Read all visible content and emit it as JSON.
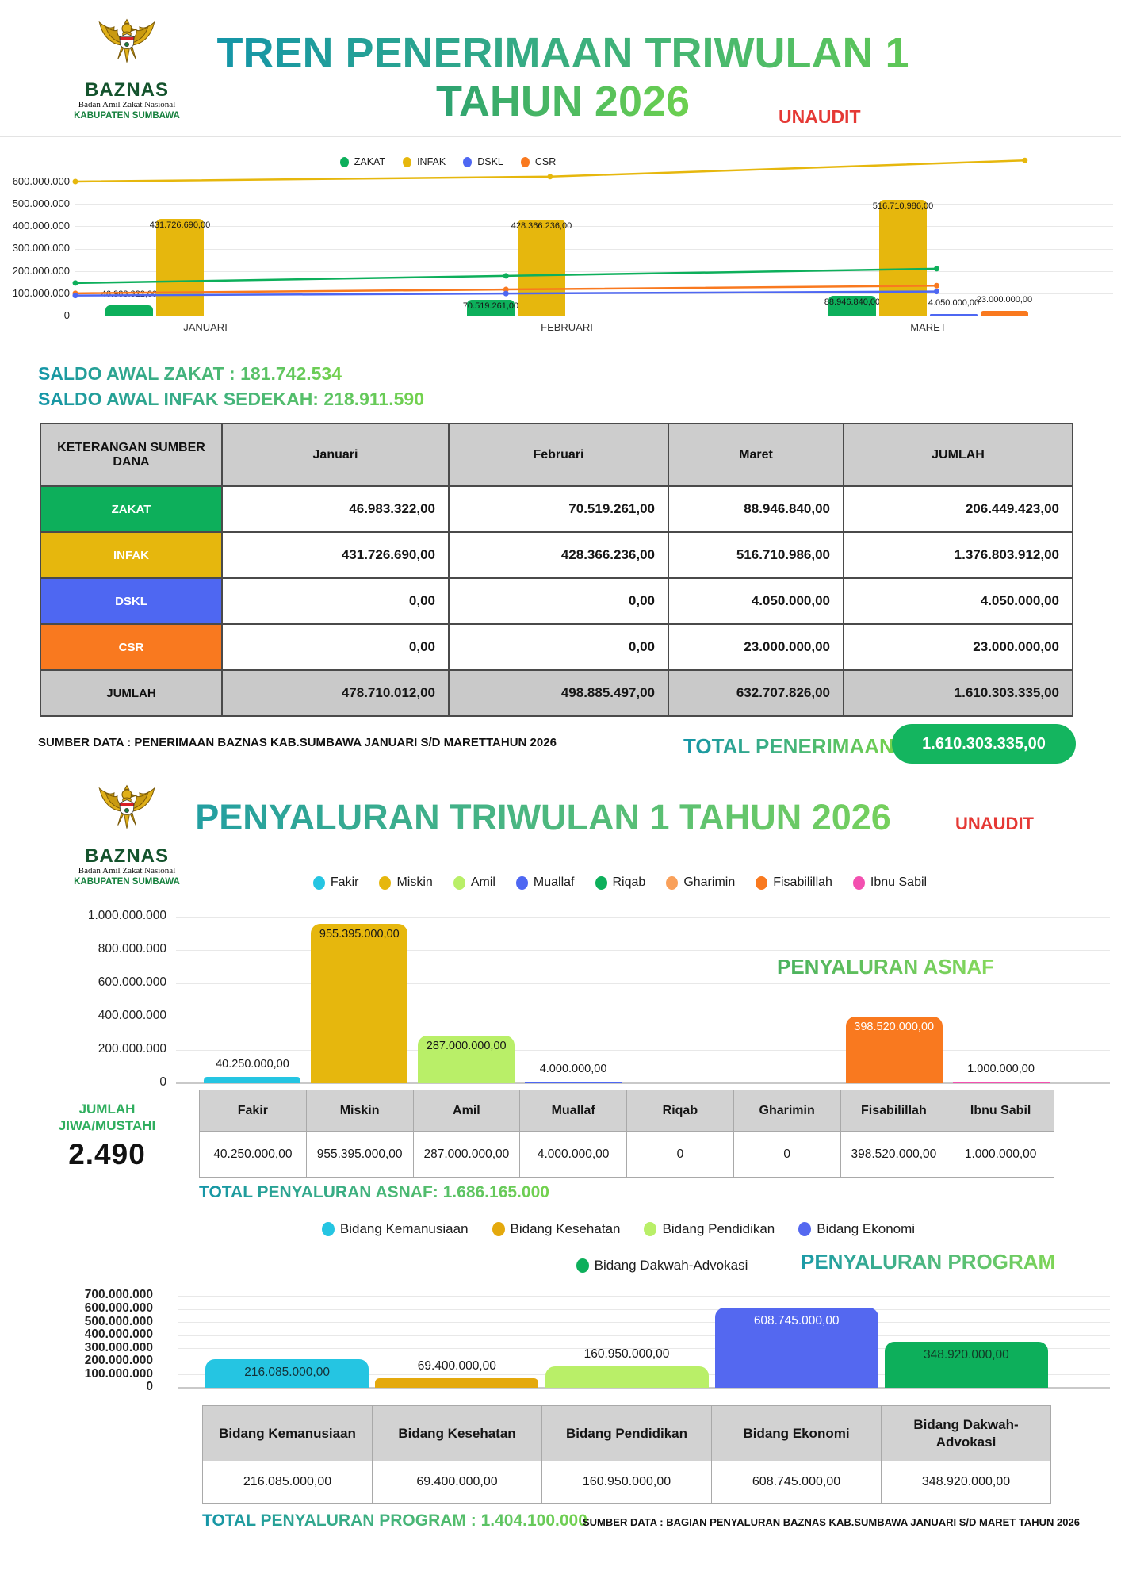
{
  "brand": {
    "name": "BAZNAS",
    "org": "Badan Amil Zakat Nasional",
    "region": "KABUPATEN SUMBAWA"
  },
  "colors": {
    "green": "#0daf5b",
    "gold": "#e6b70d",
    "blue": "#4e67f2",
    "orange": "#f9791f",
    "cyan": "#25c5e2",
    "lime": "#b9ef68",
    "light_orange": "#f9a05a",
    "pink": "#f350b0",
    "red": "#e53935",
    "teal": "#1495a8",
    "light_green": "#74d24d",
    "pill_green": "#14b55f"
  },
  "section_penerimaan": {
    "title_line1": "TREN PENERIMAAN TRIWULAN 1",
    "title_line2": "TAHUN 2026",
    "unaudit": "UNAUDIT",
    "saldo_zakat": "SALDO AWAL ZAKAT : 181.742.534",
    "saldo_infak": "SALDO AWAL INFAK SEDEKAH: 218.911.590",
    "sumber": "SUMBER DATA : PENERIMAAN BAZNAS KAB.SUMBAWA JANUARI S/D MARETTAHUN 2026",
    "total_label": "TOTAL PENERIMAAN",
    "total_value": "1.610.303.335,00",
    "table": {
      "headers": [
        "KETERANGAN SUMBER DANA",
        "Januari",
        "Februari",
        "Maret",
        "JUMLAH"
      ],
      "rows": [
        {
          "label": "ZAKAT",
          "color": "#0daf5b",
          "text": "#ffffff",
          "values": [
            "46.983.322,00",
            "70.519.261,00",
            "88.946.840,00",
            "206.449.423,00"
          ]
        },
        {
          "label": "INFAK",
          "color": "#e6b70d",
          "text": "#ffffff",
          "values": [
            "431.726.690,00",
            "428.366.236,00",
            "516.710.986,00",
            "1.376.803.912,00"
          ]
        },
        {
          "label": "DSKL",
          "color": "#4e67f2",
          "text": "#ffffff",
          "values": [
            "0,00",
            "0,00",
            "4.050.000,00",
            "4.050.000,00"
          ]
        },
        {
          "label": "CSR",
          "color": "#f9791f",
          "text": "#ffffff",
          "values": [
            "0,00",
            "0,00",
            "23.000.000,00",
            "23.000.000,00"
          ]
        },
        {
          "label": "JUMLAH",
          "color": "#c9c9c9",
          "text": "#111111",
          "values": [
            "478.710.012,00",
            "498.885.497,00",
            "632.707.826,00",
            "1.610.303.335,00"
          ]
        }
      ]
    }
  },
  "section_asnaf": {
    "title": "PENYALURAN TRIWULAN 1 TAHUN 2026",
    "unaudit": "UNAUDIT",
    "chart_title": "PENYALURAN ASNAF",
    "jumlah_label1": "JUMLAH",
    "jumlah_label2": "JIWA/MUSTAHI",
    "jumlah_value": "2.490",
    "total": "TOTAL PENYALURAN  ASNAF: 1.686.165.000",
    "table": {
      "headers": [
        "Fakir",
        "Miskin",
        "Amil",
        "Muallaf",
        "Riqab",
        "Gharimin",
        "Fisabilillah",
        "Ibnu Sabil"
      ],
      "values": [
        "40.250.000,00",
        "955.395.000,00",
        "287.000.000,00",
        "4.000.000,00",
        "0",
        "0",
        "398.520.000,00",
        "1.000.000,00"
      ]
    }
  },
  "section_program": {
    "chart_title": "PENYALURAN PROGRAM",
    "total": "TOTAL PENYALURAN  PROGRAM : 1.404.100.000",
    "sumber": "SUMBER DATA : BAGIAN PENYALURAN BAZNAS KAB.SUMBAWA JANUARI S/D MARET TAHUN 2026",
    "table": {
      "headers": [
        "Bidang Kemanusiaan",
        "Bidang Kesehatan",
        "Bidang Pendidikan",
        "Bidang Ekonomi",
        "Bidang Dakwah-Advokasi"
      ],
      "values": [
        "216.085.000,00",
        "69.400.000,00",
        "160.950.000,00",
        "608.745.000,00",
        "348.920.000,00"
      ]
    }
  },
  "chart_data": [
    {
      "id": "penerimaan",
      "type": "bar",
      "title": "TREN PENERIMAAN TRIWULAN 1 TAHUN 2026",
      "categories": [
        "JANUARI",
        "FEBRUARI",
        "MARET"
      ],
      "series": [
        {
          "name": "ZAKAT",
          "color": "#0daf5b",
          "values": [
            46983322,
            70519261,
            88946840
          ],
          "value_labels": [
            "46.983.322,00",
            "70.519.261,00",
            "88.946.840,00"
          ]
        },
        {
          "name": "INFAK",
          "color": "#e6b70d",
          "values": [
            431726690,
            428366236,
            516710986
          ],
          "value_labels": [
            "431.726.690,00",
            "428.366.236,00",
            "516.710.986,00"
          ]
        },
        {
          "name": "DSKL",
          "color": "#4e67f2",
          "values": [
            0,
            0,
            4050000
          ],
          "value_labels": [
            "",
            "",
            "4.050.000,00"
          ]
        },
        {
          "name": "CSR",
          "color": "#f9791f",
          "values": [
            0,
            0,
            23000000
          ],
          "value_labels": [
            "",
            "",
            "23.000.000,00"
          ]
        }
      ],
      "ylim": [
        0,
        600000000
      ],
      "yticks_labels": [
        "600.000.000",
        "500.000.000",
        "400.000.000",
        "300.000.000",
        "200.000.000",
        "100.000.000",
        "0"
      ],
      "grid": true,
      "legend_position": "top",
      "trend_lines": [
        {
          "color": "#e6b70d",
          "values": [
            600000000,
            622000000,
            695000000
          ],
          "span": [
            0,
            0.915
          ]
        },
        {
          "color": "#0daf5b",
          "values": [
            146000000,
            178000000,
            210000000
          ],
          "span": [
            0,
            0.83
          ]
        },
        {
          "color": "#f9791f",
          "values": [
            100000000,
            117000000,
            134000000
          ],
          "span": [
            0,
            0.83
          ]
        },
        {
          "color": "#4e67f2",
          "values": [
            90000000,
            99000000,
            108000000
          ],
          "span": [
            0,
            0.83
          ]
        }
      ]
    },
    {
      "id": "penyaluran-asnaf",
      "type": "bar",
      "title": "PENYALURAN ASNAF",
      "categories": [
        "Fakir",
        "Miskin",
        "Amil",
        "Muallaf",
        "Riqab",
        "Gharimin",
        "Fisabilillah",
        "Ibnu Sabil"
      ],
      "values": [
        40250000,
        955395000,
        287000000,
        4000000,
        0,
        0,
        398520000,
        1000000
      ],
      "value_labels": [
        "40.250.000,00",
        "955.395.000,00",
        "287.000.000,00",
        "4.000.000,00",
        "",
        "",
        "398.520.000,00",
        "1.000.000,00"
      ],
      "colors": [
        "#25c5e2",
        "#e6b70d",
        "#b9ef68",
        "#4e67f2",
        "#0daf5b",
        "#f9a05a",
        "#f9791f",
        "#f350b0"
      ],
      "label_colors": [
        "#161616",
        "#161616",
        "#161616",
        "#161616",
        "#161616",
        "#161616",
        "#ffffff",
        "#161616"
      ],
      "ylim": [
        0,
        1000000000
      ],
      "yticks_labels": [
        "1.000.000.000",
        "800.000.000",
        "600.000.000",
        "400.000.000",
        "200.000.000",
        "0"
      ],
      "grid": true,
      "legend_position": "top"
    },
    {
      "id": "penyaluran-program",
      "type": "bar",
      "title": "PENYALURAN PROGRAM",
      "categories": [
        "Bidang Kemanusiaan",
        "Bidang Kesehatan",
        "Bidang Pendidikan",
        "Bidang Ekonomi",
        "Bidang Dakwah-Advokasi"
      ],
      "values": [
        216085000,
        69400000,
        160950000,
        608745000,
        348920000
      ],
      "value_labels": [
        "216.085.000,00",
        "69.400.000,00",
        "160.950.000,00",
        "608.745.000,00",
        "348.920.000,00"
      ],
      "colors": [
        "#25c5e2",
        "#e4a90d",
        "#b9ef68",
        "#5468f0",
        "#0daf5b"
      ],
      "label_colors": [
        "#143238",
        "#161616",
        "#161616",
        "#ffffff",
        "#113a26"
      ],
      "ylim": [
        0,
        700000000
      ],
      "yticks_labels": [
        "700.000.000",
        "600.000.000",
        "500.000.000",
        "400.000.000",
        "300.000.000",
        "200.000.000",
        "100.000.000",
        "0"
      ],
      "grid": true,
      "legend_position": "top"
    }
  ]
}
